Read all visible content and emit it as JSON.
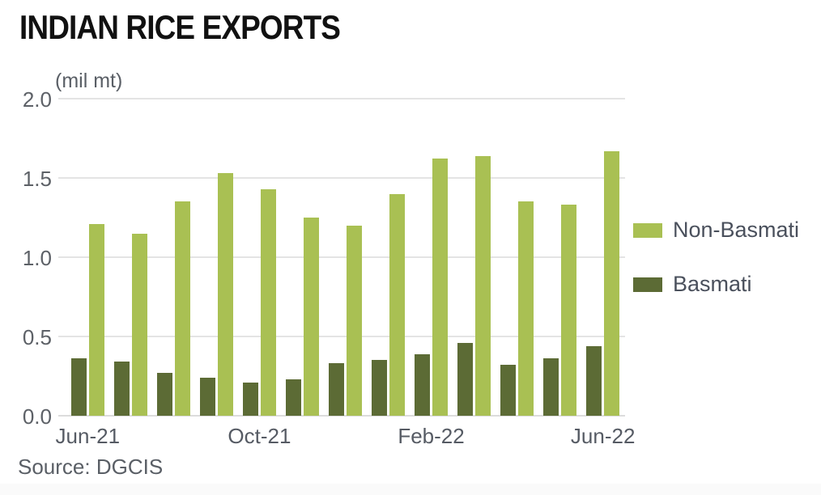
{
  "title": "INDIAN RICE EXPORTS",
  "unit_label": "(mil mt)",
  "source": "Source: DGCIS",
  "legend": [
    {
      "label": "Non-Basmati",
      "color": "#a9c053"
    },
    {
      "label": "Basmati",
      "color": "#5c6b35"
    }
  ],
  "colors": {
    "non_basmati": "#a9c053",
    "basmati": "#5c6b35",
    "gridline": "#e4e4e4",
    "axis_text": "#5a5f66",
    "title_text": "#111111"
  },
  "chart_data": {
    "type": "bar",
    "title": "INDIAN RICE EXPORTS",
    "ylabel": "(mil mt)",
    "xlabel": "",
    "ylim": [
      0.0,
      2.0
    ],
    "yticks": [
      "0.0",
      "0.5",
      "1.0",
      "1.5",
      "2.0"
    ],
    "grid": "horizontal",
    "legend_position": "right",
    "categories": [
      "Jun-21",
      "Jul-21",
      "Aug-21",
      "Sep-21",
      "Oct-21",
      "Nov-21",
      "Dec-21",
      "Jan-22",
      "Feb-22",
      "Mar-22",
      "Apr-22",
      "May-22",
      "Jun-22"
    ],
    "visible_xticks": [
      {
        "label": "Jun-21",
        "category_index": 0
      },
      {
        "label": "Oct-21",
        "category_index": 4
      },
      {
        "label": "Feb-22",
        "category_index": 8
      },
      {
        "label": "Jun-22",
        "category_index": 12
      }
    ],
    "series": [
      {
        "name": "Basmati",
        "color": "#5c6b35",
        "values": [
          0.36,
          0.34,
          0.27,
          0.24,
          0.21,
          0.23,
          0.33,
          0.35,
          0.39,
          0.46,
          0.32,
          0.36,
          0.44
        ]
      },
      {
        "name": "Non-Basmati",
        "color": "#a9c053",
        "values": [
          1.21,
          1.15,
          1.35,
          1.53,
          1.43,
          1.25,
          1.2,
          1.4,
          1.62,
          1.64,
          1.35,
          1.33,
          1.67
        ]
      }
    ]
  }
}
